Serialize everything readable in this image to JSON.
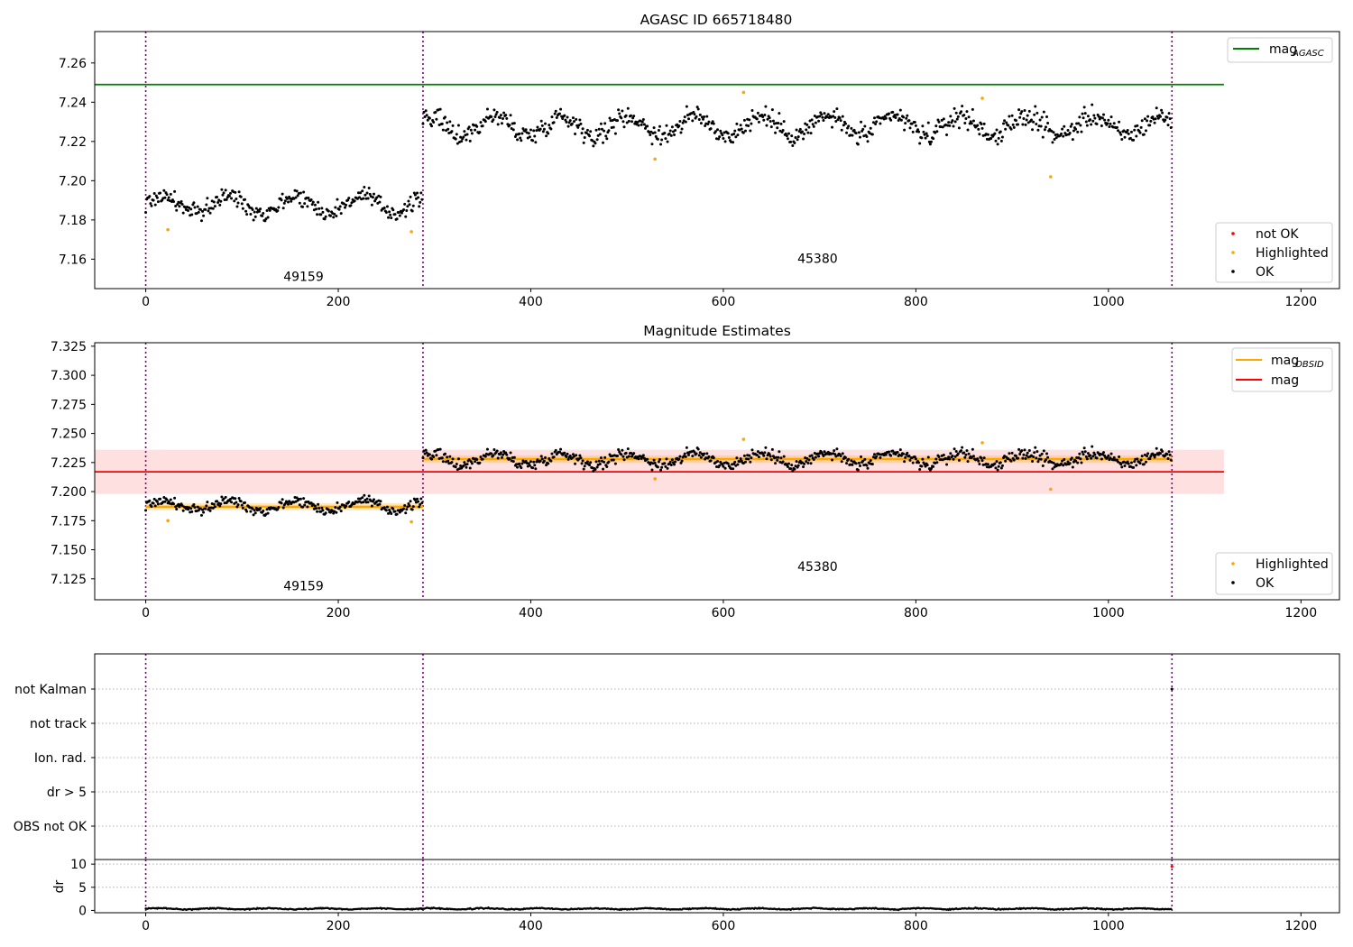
{
  "chart_data": [
    {
      "type": "scatter",
      "title": "AGASC ID 665718480",
      "xlabel": "",
      "ylabel": "",
      "xlim": [
        -53,
        1240
      ],
      "ylim": [
        7.145,
        7.276
      ],
      "xticks": [
        "0",
        "200",
        "400",
        "600",
        "800",
        "1000",
        "1200"
      ],
      "yticks": [
        "7.16",
        "7.18",
        "7.20",
        "7.22",
        "7.24",
        "7.26"
      ],
      "obs_boundaries": [
        0,
        288,
        1066
      ],
      "obs_labels": [
        {
          "text": "49159",
          "x": 143,
          "y": 7.149
        },
        {
          "text": "45380",
          "x": 677,
          "y": 7.158
        }
      ],
      "reference_lines": [
        {
          "name": "mag_AGASC",
          "y": 7.249,
          "x": [
            -53,
            1120
          ],
          "color": "#008000"
        }
      ],
      "series": [
        {
          "name": "OK",
          "color": "#000000",
          "generated_from_segments": true,
          "segments": [
            {
              "x": [
                0,
                287
              ],
              "mean": 7.188,
              "spread": 0.012
            },
            {
              "x": [
                288,
                1065
              ],
              "mean": 7.228,
              "spread": 0.014
            }
          ]
        },
        {
          "name": "Highlighted",
          "color": "#ffa500",
          "points": [
            [
              23,
              7.175
            ],
            [
              276,
              7.174
            ],
            [
              529,
              7.211
            ],
            [
              621,
              7.245
            ],
            [
              869,
              7.242
            ],
            [
              940,
              7.202
            ]
          ]
        },
        {
          "name": "not OK",
          "color": "#ff0000",
          "points": []
        }
      ],
      "legend_upper": {
        "placement": "upper right",
        "entries": [
          {
            "label": "mag",
            "sub": "AGASC",
            "color": "#008000"
          }
        ]
      },
      "legend_lower": {
        "placement": "lower right",
        "entries": [
          {
            "label": "not OK",
            "color": "#ff0000"
          },
          {
            "label": "Highlighted",
            "color": "#ffa500"
          },
          {
            "label": "OK",
            "color": "#000000"
          }
        ]
      }
    },
    {
      "type": "scatter",
      "title": "Magnitude Estimates",
      "xlabel": "",
      "ylabel": "",
      "xlim": [
        -53,
        1240
      ],
      "ylim": [
        7.107,
        7.328
      ],
      "xticks": [
        "0",
        "200",
        "400",
        "600",
        "800",
        "1000",
        "1200"
      ],
      "yticks": [
        "7.125",
        "7.150",
        "7.175",
        "7.200",
        "7.225",
        "7.250",
        "7.275",
        "7.300",
        "7.325"
      ],
      "obs_boundaries": [
        0,
        288,
        1066
      ],
      "obs_labels": [
        {
          "text": "49159",
          "x": 143,
          "y": 7.115
        },
        {
          "text": "45380",
          "x": 677,
          "y": 7.132
        }
      ],
      "reference_lines": [
        {
          "name": "mag",
          "y": 7.217,
          "x": [
            -53,
            1120
          ],
          "color": "#ff0000",
          "band": [
            7.198,
            7.236
          ]
        }
      ],
      "segment_means": [
        {
          "name": "mag_OBSID",
          "x": [
            0,
            288
          ],
          "y": 7.187,
          "color": "#ffa500"
        },
        {
          "name": "mag_OBSID",
          "x": [
            288,
            1066
          ],
          "y": 7.228,
          "color": "#ffa500"
        }
      ],
      "series": [
        {
          "name": "OK",
          "color": "#000000",
          "generated_from_segments": true,
          "segments": [
            {
              "x": [
                0,
                287
              ],
              "mean": 7.188,
              "spread": 0.012
            },
            {
              "x": [
                288,
                1065
              ],
              "mean": 7.228,
              "spread": 0.014
            }
          ]
        },
        {
          "name": "Highlighted",
          "color": "#ffa500",
          "points": [
            [
              23,
              7.175
            ],
            [
              276,
              7.174
            ],
            [
              529,
              7.211
            ],
            [
              621,
              7.245
            ],
            [
              869,
              7.242
            ],
            [
              940,
              7.202
            ]
          ]
        }
      ],
      "legend_upper": {
        "placement": "upper right",
        "entries": [
          {
            "label": "mag",
            "sub": "OBSID",
            "color": "#ffa500"
          },
          {
            "label": "mag",
            "sub": "",
            "color": "#ff0000"
          }
        ]
      },
      "legend_lower": {
        "placement": "lower right",
        "entries": [
          {
            "label": "Highlighted",
            "color": "#ffa500"
          },
          {
            "label": "OK",
            "color": "#000000"
          }
        ]
      }
    },
    {
      "type": "scatter",
      "title": "",
      "xlabel": "",
      "ylabel": "",
      "xlim": [
        -53,
        1240
      ],
      "categories": [
        "OBS not OK",
        "dr > 5",
        "Ion. rad.",
        "not track",
        "not Kalman"
      ],
      "flag_points": [
        {
          "category": "not Kalman",
          "x": 1066
        }
      ],
      "obs_boundaries": [
        0,
        288,
        1066
      ]
    },
    {
      "type": "line",
      "title": "",
      "xlabel": "",
      "ylabel": "dr",
      "xlim": [
        -53,
        1240
      ],
      "ylim": [
        -0.5,
        11
      ],
      "xticks": [
        "0",
        "200",
        "400",
        "600",
        "800",
        "1000",
        "1200"
      ],
      "yticks": [
        "0",
        "5",
        "10"
      ],
      "reference_lines": [
        {
          "y": 5
        },
        {
          "y": 10
        }
      ],
      "obs_boundaries": [
        0,
        288,
        1066
      ],
      "series": [
        {
          "name": "dr",
          "color": "#000000",
          "generated_from_segments": true,
          "range": [
            0,
            1065
          ],
          "mean": 0.35,
          "spread": 0.3
        },
        {
          "name": "dr > 5",
          "color": "#ff0000",
          "points": [
            [
              1066,
              9.5
            ]
          ]
        }
      ]
    }
  ]
}
